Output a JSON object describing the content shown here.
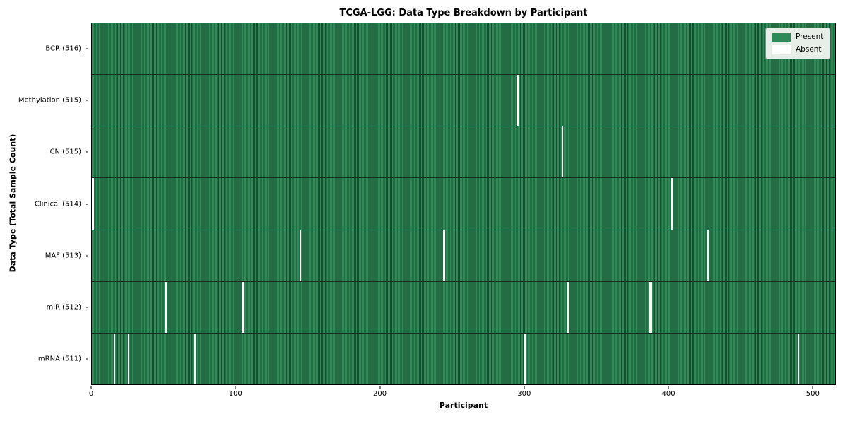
{
  "title": "TCGA-LGG: Data Type Breakdown by Participant",
  "colors": {
    "present": "#2e8b57",
    "present_dark": "#1a4d30",
    "absent": "#ffffff",
    "legend_bg": "#e7ede7"
  },
  "chart_data": {
    "type": "heatmap",
    "title": "TCGA-LGG: Data Type Breakdown by Participant",
    "xlabel": "Participant",
    "ylabel": "Data Type (Total Sample Count)",
    "n_participants": 516,
    "x_ticks": [
      0,
      100,
      200,
      300,
      400,
      500
    ],
    "xlim": [
      0,
      516
    ],
    "grid": false,
    "legend_position": "upper right",
    "legend": [
      "Present",
      "Absent"
    ],
    "cell_states": {
      "present": 1,
      "absent": 0
    },
    "rows": [
      {
        "label": "BCR (516)",
        "data_type": "BCR",
        "present_count": 516,
        "absent_indices": []
      },
      {
        "label": "Methylation (515)",
        "data_type": "Methylation",
        "present_count": 515,
        "absent_indices": [
          295
        ]
      },
      {
        "label": "CN (515)",
        "data_type": "CN",
        "present_count": 515,
        "absent_indices": [
          326
        ]
      },
      {
        "label": "Clinical (514)",
        "data_type": "Clinical",
        "present_count": 514,
        "absent_indices": [
          0,
          402
        ]
      },
      {
        "label": "MAF (513)",
        "data_type": "MAF",
        "present_count": 513,
        "absent_indices": [
          144,
          244,
          427
        ]
      },
      {
        "label": "miR (512)",
        "data_type": "miR",
        "present_count": 512,
        "absent_indices": [
          51,
          104,
          330,
          387
        ]
      },
      {
        "label": "mRNA (511)",
        "data_type": "mRNA",
        "present_count": 511,
        "absent_indices": [
          15,
          25,
          71,
          300,
          490
        ]
      }
    ]
  }
}
